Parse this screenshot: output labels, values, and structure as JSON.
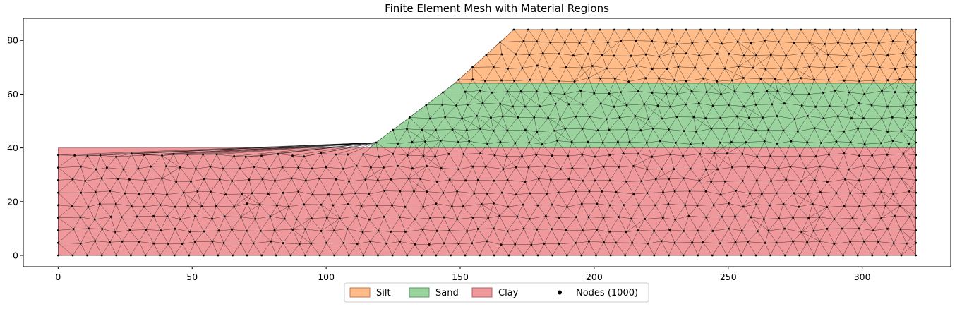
{
  "chart_data": {
    "type": "mesh",
    "title": "Finite Element Mesh with Material Regions",
    "xlabel": "",
    "ylabel": "",
    "xlim": [
      -13,
      333
    ],
    "ylim": [
      -4.2,
      88.2
    ],
    "xticks": [
      0,
      50,
      100,
      150,
      200,
      250,
      300
    ],
    "yticks": [
      0,
      20,
      40,
      60,
      80
    ],
    "grid": false,
    "legend_position": "bottom-center",
    "regions": [
      {
        "name": "Silt",
        "color": "#FFBB88",
        "edge": "#C07A50",
        "polygon": [
          [
            148,
            64
          ],
          [
            170,
            84
          ],
          [
            320,
            84
          ],
          [
            320,
            64
          ]
        ]
      },
      {
        "name": "Sand",
        "color": "#9BD39E",
        "edge": "#5E9A62",
        "polygon": [
          [
            116,
            40
          ],
          [
            148,
            64
          ],
          [
            320,
            64
          ],
          [
            320,
            40
          ]
        ]
      },
      {
        "name": "Clay",
        "color": "#F0999C",
        "edge": "#B06064",
        "polygon": [
          [
            0,
            0
          ],
          [
            0,
            40
          ],
          [
            116,
            40
          ],
          [
            320,
            40
          ],
          [
            320,
            0
          ]
        ]
      }
    ],
    "nodes": {
      "count": 1000,
      "label": "Nodes (1000)",
      "color": "#000000"
    },
    "legend": [
      {
        "label": "Silt",
        "marker": "patch",
        "color": "#FFBB88",
        "edge": "#C07A50"
      },
      {
        "label": "Sand",
        "marker": "patch",
        "color": "#9BD39E",
        "edge": "#5E9A62"
      },
      {
        "label": "Clay",
        "marker": "patch",
        "color": "#F0999C",
        "edge": "#B06064"
      },
      {
        "label": "Nodes (1000)",
        "marker": "dot",
        "color": "#000000"
      }
    ]
  }
}
